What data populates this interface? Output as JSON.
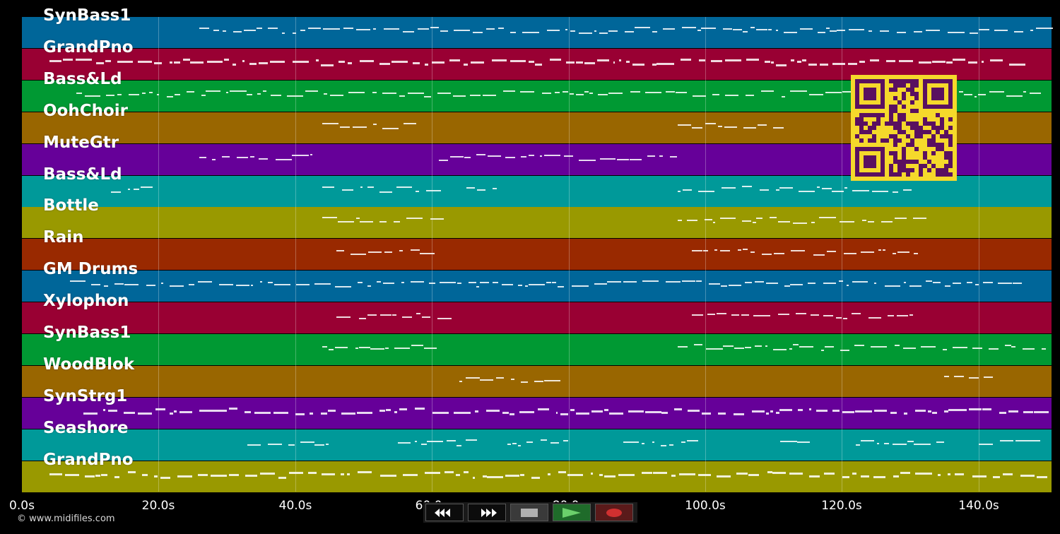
{
  "tracks": [
    {
      "name": "SynBass1",
      "color": "#006699"
    },
    {
      "name": "GrandPno",
      "color": "#990033"
    },
    {
      "name": "Bass&Ld",
      "color": "#009933"
    },
    {
      "name": "OohChoir",
      "color": "#996600"
    },
    {
      "name": "MuteGtr",
      "color": "#660099"
    },
    {
      "name": "Bass&Ld",
      "color": "#009999"
    },
    {
      "name": "Bottle",
      "color": "#999900"
    },
    {
      "name": "Rain",
      "color": "#992900"
    },
    {
      "name": "GM Drums",
      "color": "#006699"
    },
    {
      "name": "Xylophon",
      "color": "#990033"
    },
    {
      "name": "SynBass1",
      "color": "#009933"
    },
    {
      "name": "WoodBlok",
      "color": "#996600"
    },
    {
      "name": "SynStrg1",
      "color": "#660099"
    },
    {
      "name": "Seashore",
      "color": "#009999"
    },
    {
      "name": "GrandPno",
      "color": "#999900"
    }
  ],
  "timeline": {
    "ticks": [
      "0.0s",
      "20.0s",
      "40.0s",
      "60.0s",
      "80.0s",
      "100.0s",
      "120.0s",
      "140.0s"
    ],
    "max_seconds": 150.5
  },
  "footer": {
    "copyright": "© www.midifiles.com"
  },
  "transport": {
    "rewind": "rewind-icon",
    "forward": "fast-forward-icon",
    "stop": "stop-icon",
    "play": "play-icon",
    "record": "record-icon"
  },
  "qr_color": "#5a1060",
  "qr_background": "#f5d92b"
}
